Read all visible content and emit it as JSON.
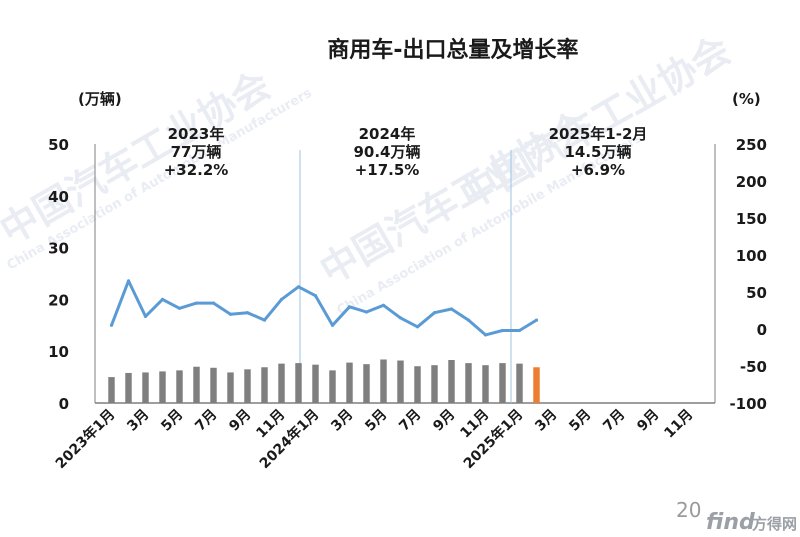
{
  "page_number": "20",
  "watermark": {
    "cn": "中国汽车工业协会",
    "en": "China Association of Automobile Manufacturers"
  },
  "logo": {
    "latin": "find",
    "cn": "方得网"
  },
  "colors": {
    "bar": "#7f7f7f",
    "bar_highlight": "#ed7d31",
    "line": "#5b9bd5",
    "divider": "#9dc3e6"
  },
  "chart_data": {
    "type": "bar+line",
    "title": "商用车-出口总量及增长率",
    "left_axis": {
      "unit_label": "(万辆)",
      "ylim": [
        0,
        50
      ],
      "ticks": [
        0,
        10,
        20,
        30,
        40,
        50
      ]
    },
    "right_axis": {
      "unit_label": "(%)",
      "ylim": [
        -100,
        250
      ],
      "ticks": [
        -100,
        -50,
        0,
        50,
        100,
        150,
        200,
        250
      ]
    },
    "x_tick_labels": [
      "2023年1月",
      "3月",
      "5月",
      "7月",
      "9月",
      "11月",
      "2024年1月",
      "3月",
      "5月",
      "7月",
      "9月",
      "11月",
      "2025年1月",
      "3月",
      "5月",
      "7月",
      "9月",
      "11月"
    ],
    "series": [
      {
        "kind": "bar",
        "values": [
          5.0,
          5.8,
          5.9,
          6.1,
          6.3,
          7.0,
          6.8,
          5.9,
          6.5,
          6.9,
          7.6,
          7.7,
          7.4,
          6.3,
          7.8,
          7.5,
          8.4,
          8.2,
          7.1,
          7.3,
          8.3,
          7.7,
          7.3,
          7.7,
          7.6,
          6.9
        ],
        "highlight_index": 25
      },
      {
        "kind": "line",
        "axis": "right",
        "values": [
          5,
          65,
          17,
          40,
          28,
          35,
          35,
          20,
          22,
          12,
          40,
          57,
          45,
          5,
          30,
          23,
          32,
          15,
          3,
          22,
          27,
          12,
          -8,
          -2,
          -2,
          12
        ]
      }
    ],
    "annotations": [
      {
        "lines": [
          "2023年",
          "77万辆",
          "+32.2%"
        ]
      },
      {
        "lines": [
          "2024年",
          "90.4万辆",
          "+17.5%"
        ]
      },
      {
        "lines": [
          "2025年1-2月",
          "14.5万辆",
          "+6.9%"
        ]
      }
    ]
  }
}
